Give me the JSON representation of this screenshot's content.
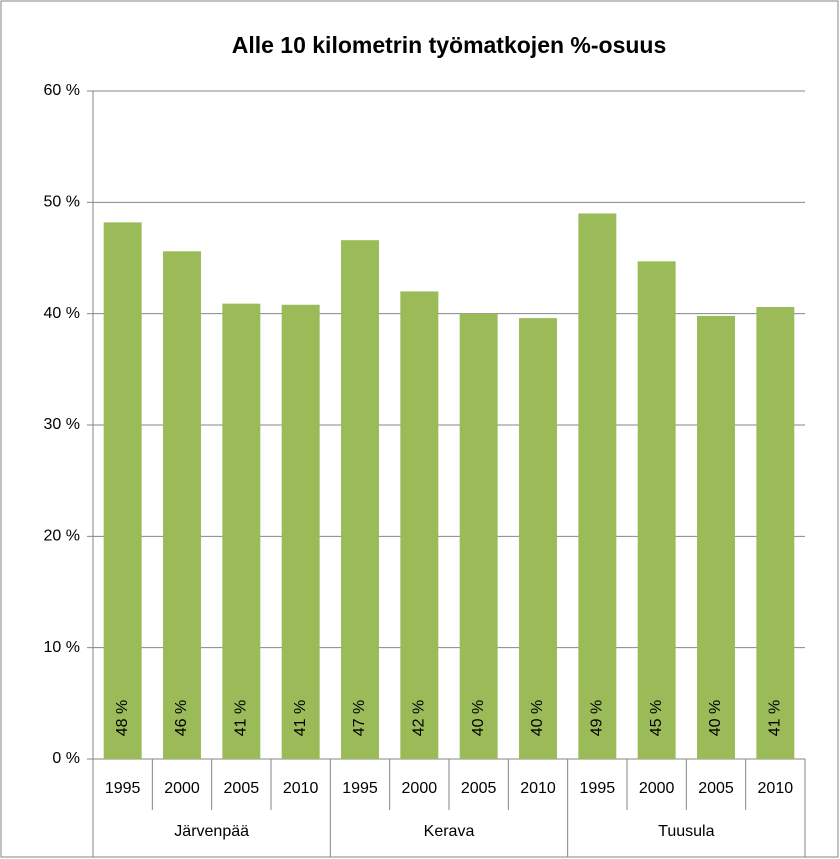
{
  "chart_data": {
    "type": "bar",
    "title": "Alle 10 kilometrin työmatkojen %-osuus",
    "categories": [
      "1995",
      "2000",
      "2005",
      "2010",
      "1995",
      "2000",
      "2005",
      "2010",
      "1995",
      "2000",
      "2005",
      "2010"
    ],
    "groups": [
      "Järvenpää",
      "Kerava",
      "Tuusula"
    ],
    "values": [
      48.2,
      45.6,
      40.9,
      40.8,
      46.6,
      42.0,
      40.0,
      39.6,
      49.0,
      44.7,
      39.8,
      40.6
    ],
    "value_labels": [
      "48 %",
      "46 %",
      "41 %",
      "41 %",
      "47 %",
      "42 %",
      "40 %",
      "40 %",
      "49 %",
      "45 %",
      "40 %",
      "41 %"
    ],
    "color": "#9bbb59",
    "ylim": [
      0,
      60
    ],
    "yticks": [
      {
        "value": 0,
        "label": "0 %"
      },
      {
        "value": 10,
        "label": "10 %"
      },
      {
        "value": 20,
        "label": "20 %"
      },
      {
        "value": 30,
        "label": "30 %"
      },
      {
        "value": 40,
        "label": "40 %"
      },
      {
        "value": 50,
        "label": "50 %"
      },
      {
        "value": 60,
        "label": "60 %"
      }
    ],
    "grid": true
  }
}
